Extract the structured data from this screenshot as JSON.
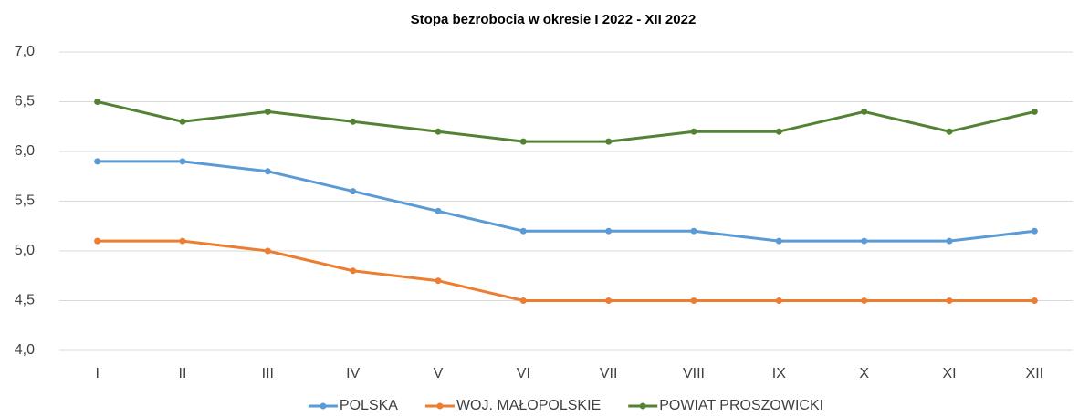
{
  "chart_data": {
    "type": "line",
    "title": "Stopa bezrobocia w okresie I 2022 - XII 2022",
    "categories": [
      "I",
      "II",
      "III",
      "IV",
      "V",
      "VI",
      "VII",
      "VIII",
      "IX",
      "X",
      "XI",
      "XII"
    ],
    "series": [
      {
        "name": "POLSKA",
        "color": "#5b9bd5",
        "values": [
          5.9,
          5.9,
          5.8,
          5.6,
          5.4,
          5.2,
          5.2,
          5.2,
          5.1,
          5.1,
          5.1,
          5.2
        ]
      },
      {
        "name": "WOJ. MAŁOPOLSKIE",
        "color": "#ed7d31",
        "values": [
          5.1,
          5.1,
          5.0,
          4.8,
          4.7,
          4.5,
          4.5,
          4.5,
          4.5,
          4.5,
          4.5,
          4.5
        ]
      },
      {
        "name": "POWIAT PROSZOWICKI",
        "color": "#548235",
        "values": [
          6.5,
          6.3,
          6.4,
          6.3,
          6.2,
          6.1,
          6.1,
          6.2,
          6.2,
          6.4,
          6.2,
          6.4
        ]
      }
    ],
    "ylim": [
      4,
      7
    ],
    "yticks": [
      {
        "value": 4,
        "label": "4,0"
      },
      {
        "value": 4.5,
        "label": "4,5"
      },
      {
        "value": 5,
        "label": "5,0"
      },
      {
        "value": 5.5,
        "label": "5,5"
      },
      {
        "value": 6,
        "label": "6,0"
      },
      {
        "value": 6.5,
        "label": "6,5"
      },
      {
        "value": 7,
        "label": "7,0"
      }
    ],
    "grid": true,
    "legend": "bottom"
  }
}
